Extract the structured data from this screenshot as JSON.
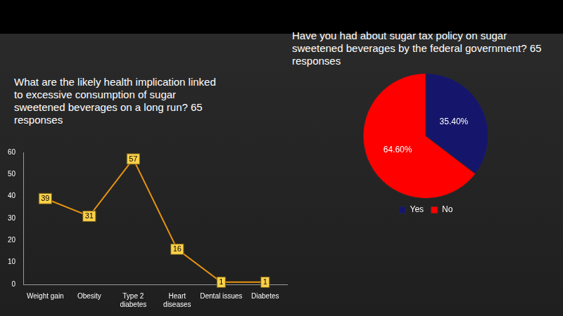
{
  "chart_data": [
    {
      "type": "line",
      "title": "What are the likely health implication linked to excessive consumption of sugar sweetened beverages on a long run?  65 responses",
      "categories": [
        "Weight gain",
        "Obesity",
        "Type 2 diabetes",
        "Heart diseases",
        "Dental issues",
        "Diabetes"
      ],
      "values": [
        39,
        31,
        57,
        16,
        1,
        1
      ],
      "color": "#e8940f",
      "ylim": [
        0,
        60
      ],
      "yticks": [
        0,
        10,
        20,
        30,
        40,
        50,
        60
      ],
      "grid": false,
      "marker": "none",
      "data_labels": true
    },
    {
      "type": "pie",
      "title": "Have you had about sugar tax policy on sugar sweetened beverages by the federal government? 65 responses",
      "categories": [
        "Yes",
        "No"
      ],
      "values": [
        35.4,
        64.6
      ],
      "value_labels": [
        "35.40%",
        "64.60%"
      ],
      "colors": [
        "#15166b",
        "#ff0000"
      ],
      "legend": "bottom",
      "data_labels": true
    }
  ]
}
